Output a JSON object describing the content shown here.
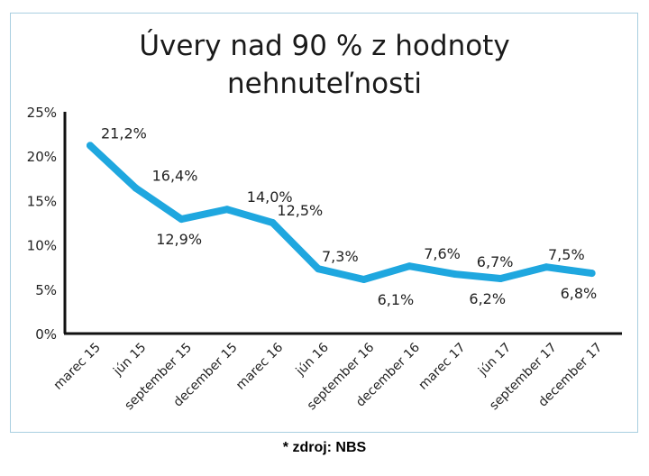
{
  "chart_data": {
    "type": "line",
    "title_lines": [
      "Úvery nad 90 % z hodnoty",
      "nehnuteľnosti"
    ],
    "categories": [
      "marec 15",
      "jún 15",
      "september 15",
      "december 15",
      "marec 16",
      "jún 16",
      "september 16",
      "december 16",
      "marec 17",
      "jún 17",
      "september 17",
      "december 17"
    ],
    "values": [
      21.2,
      16.4,
      12.9,
      14.0,
      12.5,
      7.3,
      6.1,
      7.6,
      6.7,
      6.2,
      7.5,
      6.8
    ],
    "data_labels": [
      "21,2%",
      "16,4%",
      "12,9%",
      "14,0%",
      "12,5%",
      "7,3%",
      "6,1%",
      "7,6%",
      "6,7%",
      "6,2%",
      "7,5%",
      "6,8%"
    ],
    "y_ticks": [
      0,
      5,
      10,
      15,
      20,
      25
    ],
    "y_tick_labels": [
      "0%",
      "5%",
      "10%",
      "15%",
      "20%",
      "25%"
    ],
    "ylim": [
      0,
      25
    ],
    "line_color": "#1fa7df",
    "grid": false,
    "legend": "none"
  },
  "footer": {
    "source": "* zdroj: NBS"
  }
}
